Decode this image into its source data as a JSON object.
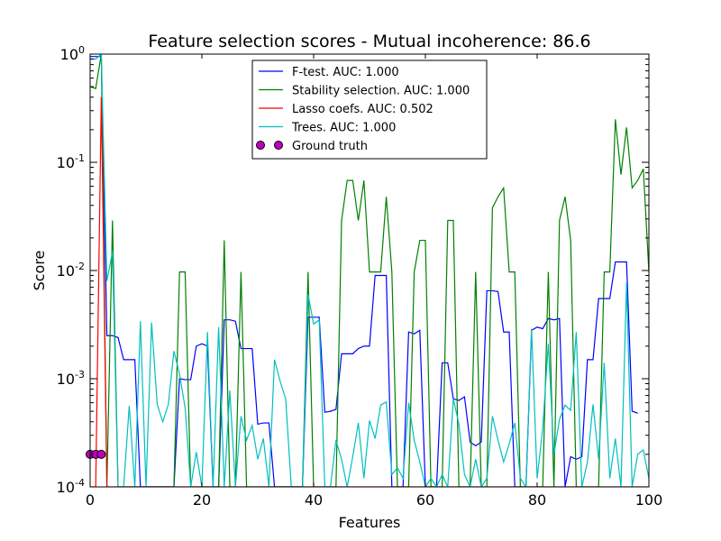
{
  "chart_data": {
    "type": "line",
    "title": "Feature selection scores - Mutual incoherence: 86.6",
    "xlabel": "Features",
    "ylabel": "Score",
    "xlim": [
      0,
      100
    ],
    "ylim": [
      0.0001,
      1
    ],
    "yscale": "log",
    "grid": false,
    "legend_position": "upper center",
    "x_ticks": [
      "0",
      "20",
      "40",
      "60",
      "80",
      "100"
    ],
    "y_ticks": [
      {
        "base": "10",
        "exp": "-4"
      },
      {
        "base": "10",
        "exp": "-3"
      },
      {
        "base": "10",
        "exp": "-2"
      },
      {
        "base": "10",
        "exp": "-1"
      },
      {
        "base": "10",
        "exp": "0"
      }
    ],
    "series": [
      {
        "name": "F-test. AUC: 1.000",
        "color": "#0000ff",
        "marker": "line",
        "points": [
          [
            0,
            0.95
          ],
          [
            1,
            0.95
          ],
          [
            2,
            0.95
          ],
          [
            3,
            0.0025
          ],
          [
            4,
            0.0025
          ],
          [
            5,
            0.0024
          ],
          [
            6,
            0.0015
          ],
          [
            7,
            0.0015
          ],
          [
            8,
            0.0015
          ],
          [
            9,
            0.0001
          ],
          [
            10,
            0.0001
          ],
          [
            11,
            0.0001
          ],
          [
            12,
            0.0001
          ],
          [
            13,
            0.0001
          ],
          [
            14,
            0.0001
          ],
          [
            15,
            0.0001
          ],
          [
            16,
            0.001
          ],
          [
            17,
            0.00098
          ],
          [
            18,
            0.00098
          ],
          [
            19,
            0.002
          ],
          [
            20,
            0.0021
          ],
          [
            21,
            0.002
          ],
          [
            22,
            0.0001
          ],
          [
            23,
            0.0001
          ],
          [
            24,
            0.0035
          ],
          [
            25,
            0.0035
          ],
          [
            26,
            0.0034
          ],
          [
            27,
            0.0019
          ],
          [
            28,
            0.0019
          ],
          [
            29,
            0.0019
          ],
          [
            30,
            0.00038
          ],
          [
            31,
            0.00039
          ],
          [
            32,
            0.00039
          ],
          [
            33,
            0.0001
          ],
          [
            34,
            0.0001
          ],
          [
            35,
            0.0001
          ],
          [
            36,
            0.0001
          ],
          [
            37,
            0.0001
          ],
          [
            38,
            0.0001
          ],
          [
            39,
            0.0037
          ],
          [
            40,
            0.0037
          ],
          [
            41,
            0.0037
          ],
          [
            42,
            0.00049
          ],
          [
            43,
            0.0005
          ],
          [
            44,
            0.00052
          ],
          [
            45,
            0.0017
          ],
          [
            46,
            0.0017
          ],
          [
            47,
            0.0017
          ],
          [
            48,
            0.0019
          ],
          [
            49,
            0.002
          ],
          [
            50,
            0.002
          ],
          [
            51,
            0.009
          ],
          [
            52,
            0.009
          ],
          [
            53,
            0.009
          ],
          [
            54,
            0.0001
          ],
          [
            55,
            0.0001
          ],
          [
            56,
            0.0001
          ],
          [
            57,
            0.0027
          ],
          [
            58,
            0.0026
          ],
          [
            59,
            0.0028
          ],
          [
            60,
            0.0001
          ],
          [
            61,
            0.0001
          ],
          [
            62,
            0.0001
          ],
          [
            63,
            0.0014
          ],
          [
            64,
            0.0014
          ],
          [
            65,
            0.00065
          ],
          [
            66,
            0.00063
          ],
          [
            67,
            0.00068
          ],
          [
            68,
            0.00026
          ],
          [
            69,
            0.00024
          ],
          [
            70,
            0.00026
          ],
          [
            71,
            0.0065
          ],
          [
            72,
            0.0065
          ],
          [
            73,
            0.0064
          ],
          [
            74,
            0.0027
          ],
          [
            75,
            0.0027
          ],
          [
            76,
            0.0001
          ],
          [
            77,
            0.0001
          ],
          [
            78,
            0.0001
          ],
          [
            79,
            0.0028
          ],
          [
            80,
            0.003
          ],
          [
            81,
            0.0029
          ],
          [
            82,
            0.0036
          ],
          [
            83,
            0.0035
          ],
          [
            84,
            0.0036
          ],
          [
            85,
            0.0001
          ],
          [
            86,
            0.00019
          ],
          [
            87,
            0.00018
          ],
          [
            88,
            0.00019
          ],
          [
            89,
            0.0015
          ],
          [
            90,
            0.0015
          ],
          [
            91,
            0.0055
          ],
          [
            92,
            0.0055
          ],
          [
            93,
            0.0055
          ],
          [
            94,
            0.012
          ],
          [
            95,
            0.012
          ],
          [
            96,
            0.012
          ],
          [
            97,
            0.0005
          ],
          [
            98,
            0.00048
          ]
        ]
      },
      {
        "name": "Stability selection. AUC: 1.000",
        "color": "#008000",
        "marker": "line",
        "points": [
          [
            0,
            0.5
          ],
          [
            1,
            0.48
          ],
          [
            2,
            1.0
          ],
          [
            3,
            0.0001
          ],
          [
            4,
            0.029
          ],
          [
            5,
            0.0001
          ],
          [
            15,
            0.0001
          ],
          [
            16,
            0.0097
          ],
          [
            17,
            0.0097
          ],
          [
            18,
            0.0001
          ],
          [
            23,
            0.0001
          ],
          [
            24,
            0.019
          ],
          [
            25,
            0.0001
          ],
          [
            26,
            0.0001
          ],
          [
            27,
            0.0097
          ],
          [
            28,
            0.0001
          ],
          [
            38,
            0.0001
          ],
          [
            39,
            0.0097
          ],
          [
            40,
            0.0001
          ],
          [
            44,
            0.0001
          ],
          [
            45,
            0.029
          ],
          [
            46,
            0.068
          ],
          [
            47,
            0.068
          ],
          [
            48,
            0.029
          ],
          [
            49,
            0.068
          ],
          [
            50,
            0.0097
          ],
          [
            51,
            0.0097
          ],
          [
            52,
            0.0097
          ],
          [
            53,
            0.048
          ],
          [
            54,
            0.0097
          ],
          [
            55,
            0.0001
          ],
          [
            57,
            0.0001
          ],
          [
            58,
            0.0097
          ],
          [
            59,
            0.019
          ],
          [
            60,
            0.019
          ],
          [
            61,
            0.0001
          ],
          [
            63,
            0.0001
          ],
          [
            64,
            0.029
          ],
          [
            65,
            0.029
          ],
          [
            66,
            0.0001
          ],
          [
            68,
            0.0001
          ],
          [
            69,
            0.0097
          ],
          [
            70,
            0.0001
          ],
          [
            71,
            0.0001
          ],
          [
            72,
            0.038
          ],
          [
            73,
            0.048
          ],
          [
            74,
            0.058
          ],
          [
            75,
            0.0097
          ],
          [
            76,
            0.0097
          ],
          [
            77,
            0.0001
          ],
          [
            81,
            0.0001
          ],
          [
            82,
            0.0097
          ],
          [
            83,
            0.0001
          ],
          [
            84,
            0.029
          ],
          [
            85,
            0.048
          ],
          [
            86,
            0.019
          ],
          [
            87,
            0.0001
          ],
          [
            91,
            0.0001
          ],
          [
            92,
            0.0097
          ],
          [
            93,
            0.0097
          ],
          [
            94,
            0.25
          ],
          [
            95,
            0.077
          ],
          [
            96,
            0.21
          ],
          [
            97,
            0.058
          ],
          [
            98,
            0.068
          ],
          [
            99,
            0.087
          ],
          [
            100,
            0.0097
          ]
        ]
      },
      {
        "name": "Lasso coefs. AUC: 0.502",
        "color": "#ff0000",
        "marker": "line",
        "points": [
          [
            0,
            0.0001
          ],
          [
            1,
            0.0001
          ],
          [
            2,
            0.4
          ],
          [
            3,
            0.0001
          ],
          [
            100,
            0.0001
          ]
        ]
      },
      {
        "name": "Trees. AUC: 1.000",
        "color": "#00bfbf",
        "marker": "line",
        "points": [
          [
            0,
            0.9
          ],
          [
            1,
            0.9
          ],
          [
            2,
            1.0
          ],
          [
            3,
            0.008
          ],
          [
            4,
            0.015
          ],
          [
            5,
            0.0001
          ],
          [
            6,
            0.0001
          ],
          [
            7,
            0.00056
          ],
          [
            8,
            0.0001
          ],
          [
            9,
            0.0034
          ],
          [
            10,
            0.0001
          ],
          [
            11,
            0.0033
          ],
          [
            12,
            0.00058
          ],
          [
            13,
            0.0004
          ],
          [
            14,
            0.00058
          ],
          [
            15,
            0.0018
          ],
          [
            16,
            0.0011
          ],
          [
            17,
            0.00054
          ],
          [
            18,
            0.0001
          ],
          [
            19,
            0.00021
          ],
          [
            20,
            0.0001
          ],
          [
            21,
            0.0027
          ],
          [
            22,
            0.0001
          ],
          [
            23,
            0.003
          ],
          [
            24,
            0.0001
          ],
          [
            25,
            0.00078
          ],
          [
            26,
            0.0001
          ],
          [
            27,
            0.00045
          ],
          [
            28,
            0.00027
          ],
          [
            29,
            0.00037
          ],
          [
            30,
            0.00018
          ],
          [
            31,
            0.00028
          ],
          [
            32,
            0.0001
          ],
          [
            33,
            0.0015
          ],
          [
            34,
            0.00095
          ],
          [
            35,
            0.00065
          ],
          [
            36,
            0.0001
          ],
          [
            37,
            0.0001
          ],
          [
            38,
            0.0001
          ],
          [
            39,
            0.006
          ],
          [
            40,
            0.0032
          ],
          [
            41,
            0.0035
          ],
          [
            42,
            0.0001
          ],
          [
            43,
            0.0001
          ],
          [
            44,
            0.00027
          ],
          [
            45,
            0.00018
          ],
          [
            46,
            0.0001
          ],
          [
            47,
            0.00019
          ],
          [
            48,
            0.00039
          ],
          [
            49,
            0.00012
          ],
          [
            50,
            0.00041
          ],
          [
            51,
            0.00028
          ],
          [
            52,
            0.00057
          ],
          [
            53,
            0.00061
          ],
          [
            54,
            0.00013
          ],
          [
            55,
            0.00015
          ],
          [
            56,
            0.00012
          ],
          [
            57,
            0.0006
          ],
          [
            58,
            0.00027
          ],
          [
            59,
            0.00017
          ],
          [
            60,
            0.0001
          ],
          [
            61,
            0.00012
          ],
          [
            62,
            0.0001
          ],
          [
            63,
            0.00013
          ],
          [
            64,
            0.0001
          ],
          [
            65,
            0.00065
          ],
          [
            66,
            0.00038
          ],
          [
            67,
            0.00013
          ],
          [
            68,
            0.0001
          ],
          [
            69,
            0.00018
          ],
          [
            70,
            0.0001
          ],
          [
            71,
            0.00012
          ],
          [
            72,
            0.00045
          ],
          [
            73,
            0.00027
          ],
          [
            74,
            0.00017
          ],
          [
            75,
            0.00025
          ],
          [
            76,
            0.00039
          ],
          [
            77,
            0.00012
          ],
          [
            78,
            0.0001
          ],
          [
            79,
            0.0029
          ],
          [
            80,
            0.00012
          ],
          [
            81,
            0.00035
          ],
          [
            82,
            0.0021
          ],
          [
            83,
            0.0002
          ],
          [
            84,
            0.00042
          ],
          [
            85,
            0.00057
          ],
          [
            86,
            0.00051
          ],
          [
            87,
            0.0027
          ],
          [
            88,
            0.0001
          ],
          [
            89,
            0.00017
          ],
          [
            90,
            0.00058
          ],
          [
            91,
            0.00018
          ],
          [
            92,
            0.0014
          ],
          [
            93,
            0.00012
          ],
          [
            94,
            0.00028
          ],
          [
            95,
            0.0001
          ],
          [
            96,
            0.0077
          ],
          [
            97,
            0.0001
          ],
          [
            98,
            0.0002
          ],
          [
            99,
            0.00022
          ],
          [
            100,
            0.00012
          ]
        ]
      },
      {
        "name": "Ground truth",
        "color": "#bf00bf",
        "marker": "dots",
        "points": [
          [
            0,
            0.0002
          ],
          [
            1,
            0.0002
          ],
          [
            2,
            0.0002
          ]
        ]
      }
    ]
  }
}
